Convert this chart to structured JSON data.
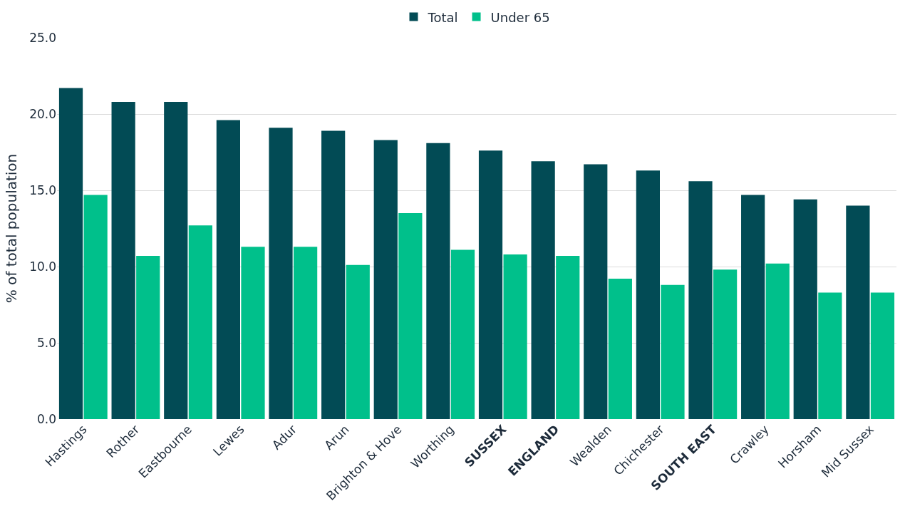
{
  "chart_data": {
    "type": "bar",
    "ylabel": "% of total population",
    "categories": [
      "Hastings",
      "Rother",
      "Eastbourne",
      "Lewes",
      "Adur",
      "Arun",
      "Brighton & Hove",
      "Worthing",
      "SUSSEX",
      "ENGLAND",
      "Wealden",
      "Chichester",
      "SOUTH EAST",
      "Crawley",
      "Horsham",
      "Mid Sussex"
    ],
    "series": [
      {
        "name": "Total",
        "color": "#024b55",
        "values": [
          21.7,
          20.8,
          20.8,
          19.6,
          19.1,
          18.9,
          18.3,
          18.1,
          17.6,
          16.9,
          16.7,
          16.3,
          15.6,
          14.7,
          14.4,
          14.0
        ]
      },
      {
        "name": "Under 65",
        "color": "#00c08b",
        "values": [
          14.7,
          10.7,
          12.7,
          11.3,
          11.3,
          10.1,
          13.5,
          11.1,
          10.8,
          10.7,
          9.2,
          8.8,
          9.8,
          10.2,
          8.3,
          8.3
        ]
      }
    ],
    "ylim": [
      0,
      25
    ],
    "yticks": [
      {
        "value": 0,
        "label": "0.0"
      },
      {
        "value": 5,
        "label": "5.0"
      },
      {
        "value": 10,
        "label": "10.0"
      },
      {
        "value": 15,
        "label": "15.0"
      },
      {
        "value": 20,
        "label": "20.0"
      },
      {
        "value": 25,
        "label": "25.0"
      }
    ],
    "grid": "y",
    "legend": "top"
  }
}
